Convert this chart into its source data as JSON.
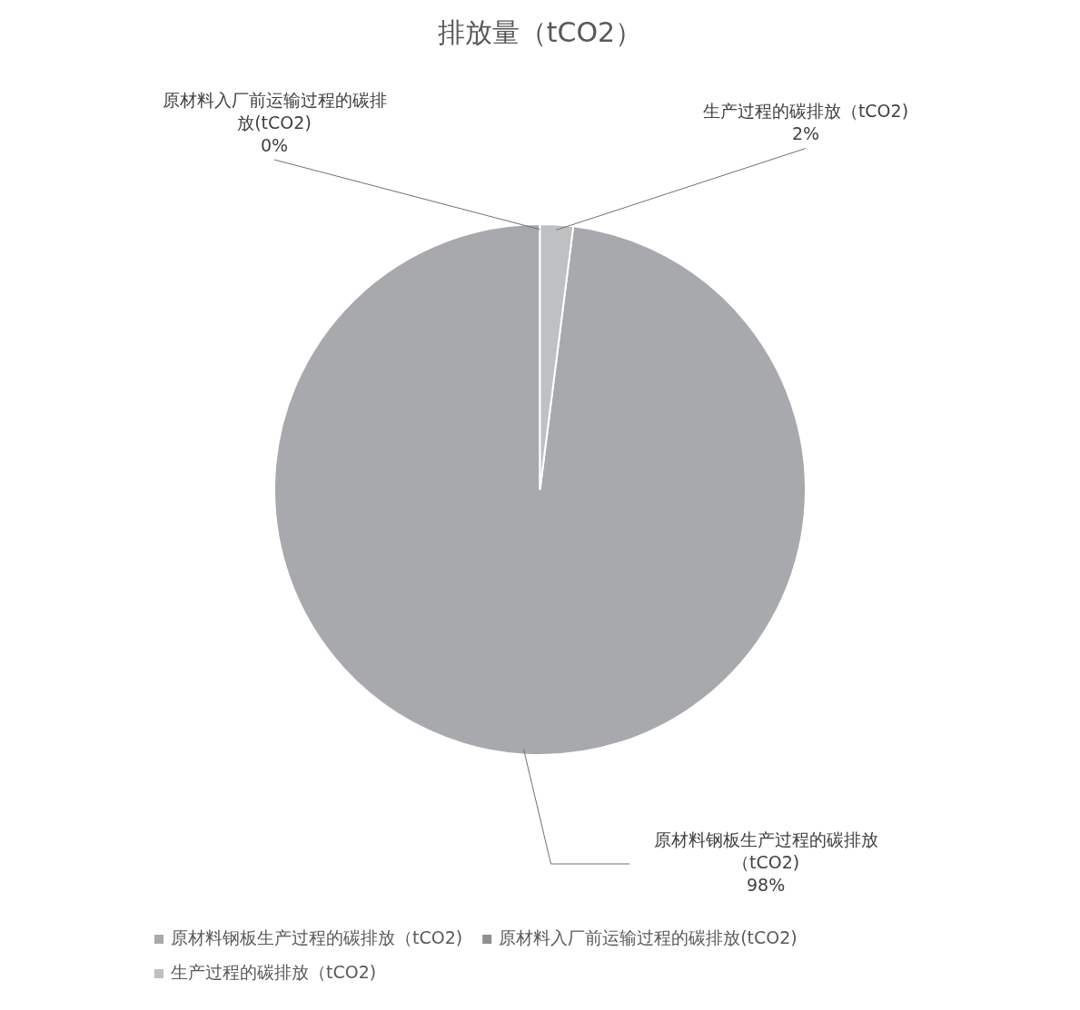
{
  "chart_data": {
    "type": "pie",
    "title": "排放量（tCO2）",
    "categories": [
      "原材料钢板生产过程的碳排放（tCO2)",
      "原材料入厂前运输过程的碳排放(tCO2)",
      "生产过程的碳排放（tCO2)"
    ],
    "values": [
      98,
      0,
      2
    ],
    "value_labels": [
      "98%",
      "0%",
      "2%"
    ],
    "colors": [
      "#a7a9ac",
      "#8e9093",
      "#bfc0c2"
    ],
    "data_labels": true,
    "legend": "bottom"
  }
}
